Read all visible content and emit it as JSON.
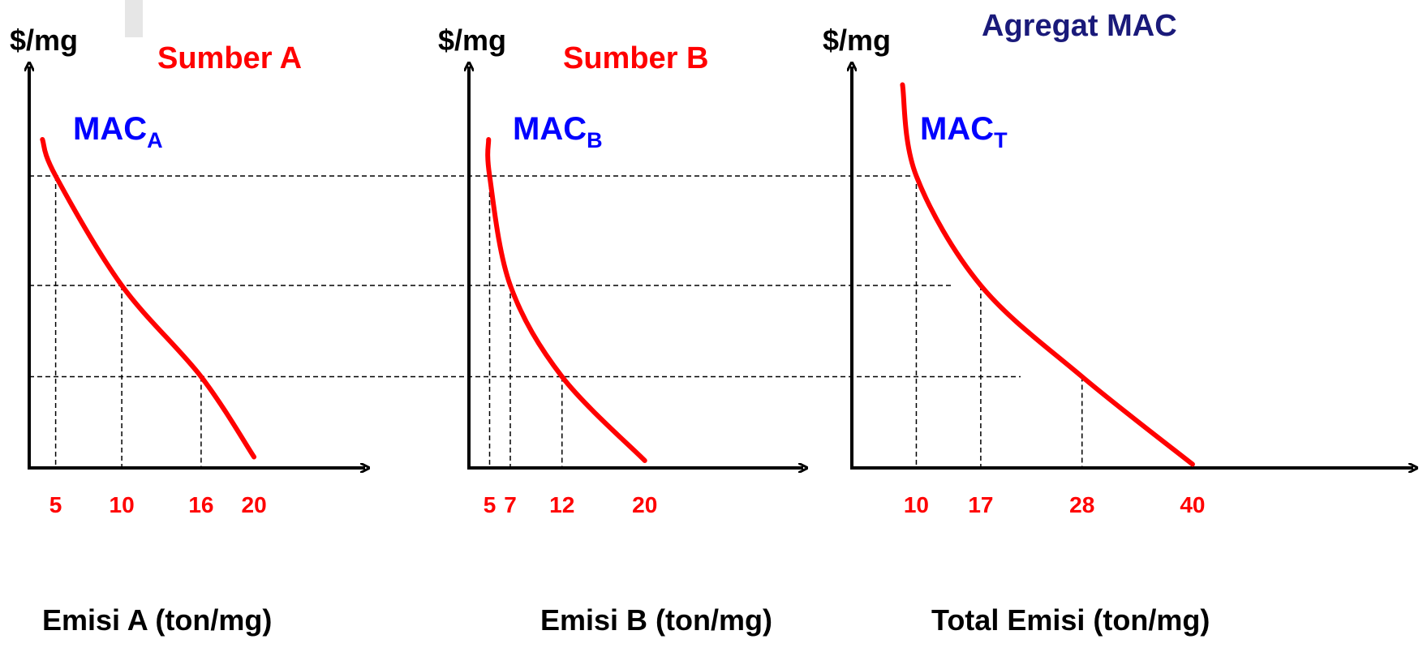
{
  "colors": {
    "curve": "#ff0000",
    "mac_label": "#0000ff",
    "title_navy": "#1a1a7a",
    "axis": "#000000",
    "tick_text": "#ff0000"
  },
  "chart_data": [
    {
      "type": "line",
      "title": "Sumber A",
      "ylabel": "$/mg",
      "xlabel": "Emisi A (ton/mg)",
      "curve_label": {
        "main": "MAC",
        "sub": "A"
      },
      "tick_labels": [
        "5",
        "10",
        "16",
        "20"
      ],
      "x": [
        4,
        5,
        10,
        16,
        20
      ],
      "y": [
        9.0,
        8.0,
        5.0,
        2.5,
        0.3
      ],
      "dashed_points": [
        {
          "x": 5,
          "y": 8.0
        },
        {
          "x": 10,
          "y": 5.0
        },
        {
          "x": 16,
          "y": 2.5
        }
      ],
      "grid": false
    },
    {
      "type": "line",
      "title": "Sumber B",
      "ylabel": "$/mg",
      "xlabel": "Emisi B (ton/mg)",
      "curve_label": {
        "main": "MAC",
        "sub": "B"
      },
      "tick_labels": [
        "5",
        "7",
        "12",
        "20"
      ],
      "x": [
        4.9,
        5,
        7,
        12,
        20
      ],
      "y": [
        9.0,
        8.0,
        5.0,
        2.5,
        0.2
      ],
      "dashed_points": [
        {
          "x": 5,
          "y": 8.0
        },
        {
          "x": 7,
          "y": 5.0
        },
        {
          "x": 12,
          "y": 2.5
        }
      ],
      "grid": false
    },
    {
      "type": "line",
      "title": "Agregat MAC",
      "ylabel": "$/mg",
      "xlabel": "Total Emisi (ton/mg)",
      "curve_label": {
        "main": "MAC",
        "sub": "T"
      },
      "tick_labels": [
        "10",
        "17",
        "28",
        "40"
      ],
      "x": [
        8.5,
        10,
        17,
        28,
        40
      ],
      "y": [
        10.5,
        8.0,
        5.0,
        2.5,
        0.1
      ],
      "dashed_points": [
        {
          "x": 10,
          "y": 8.0
        },
        {
          "x": 17,
          "y": 5.0
        },
        {
          "x": 28,
          "y": 2.5
        }
      ],
      "grid": false
    }
  ]
}
